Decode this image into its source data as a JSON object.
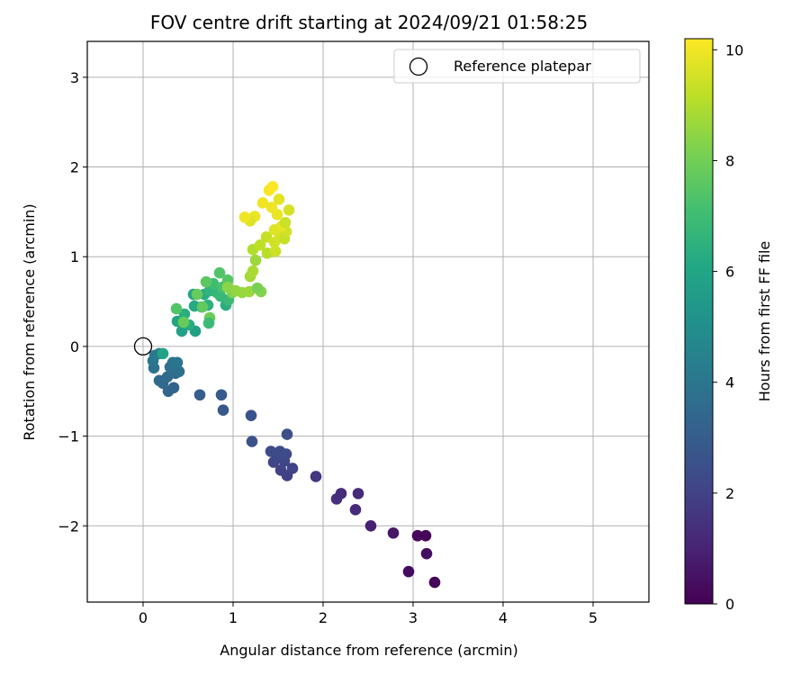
{
  "chart_data": {
    "type": "scatter",
    "title": "FOV centre drift starting at 2024/09/21 01:58:25",
    "xlabel": "Angular distance from reference (arcmin)",
    "ylabel": "Rotation from reference (arcmin)",
    "xlim": [
      -0.62,
      5.62
    ],
    "ylim": [
      -2.85,
      3.4
    ],
    "xticks": [
      0,
      1,
      2,
      3,
      4,
      5
    ],
    "yticks": [
      -2,
      -1,
      0,
      1,
      2,
      3
    ],
    "grid": true,
    "legend": {
      "placement": "upper right",
      "entries": [
        "Reference platepar"
      ]
    },
    "reference_point": {
      "name": "Reference platepar",
      "x": 0,
      "y": 0,
      "marker": "open-circle"
    },
    "colorbar": {
      "label": "Hours from first FF file",
      "colormap": "viridis",
      "range": [
        0,
        10.2
      ],
      "ticks": [
        0,
        2,
        4,
        6,
        8,
        10
      ]
    },
    "points": [
      [
        3.24,
        -2.63,
        0.1
      ],
      [
        2.95,
        -2.51,
        0.3
      ],
      [
        3.15,
        -2.31,
        0.35
      ],
      [
        3.05,
        -2.11,
        0.2
      ],
      [
        3.14,
        -2.11,
        0.15
      ],
      [
        2.78,
        -2.08,
        0.6
      ],
      [
        2.53,
        -2.0,
        0.9
      ],
      [
        2.36,
        -1.82,
        1.2
      ],
      [
        2.15,
        -1.7,
        1.4
      ],
      [
        2.2,
        -1.64,
        1.3
      ],
      [
        2.39,
        -1.64,
        1.25
      ],
      [
        1.92,
        -1.45,
        1.6
      ],
      [
        1.6,
        -1.44,
        1.9
      ],
      [
        1.53,
        -1.38,
        2.0
      ],
      [
        1.66,
        -1.36,
        2.05
      ],
      [
        1.45,
        -1.29,
        2.1
      ],
      [
        1.57,
        -1.28,
        2.15
      ],
      [
        1.5,
        -1.22,
        2.2
      ],
      [
        1.59,
        -1.2,
        2.25
      ],
      [
        1.42,
        -1.17,
        2.3
      ],
      [
        1.52,
        -1.17,
        2.35
      ],
      [
        1.6,
        -0.98,
        2.4
      ],
      [
        1.21,
        -1.06,
        2.5
      ],
      [
        1.2,
        -0.77,
        2.6
      ],
      [
        0.89,
        -0.71,
        2.8
      ],
      [
        0.87,
        -0.54,
        2.9
      ],
      [
        0.63,
        -0.54,
        3.0
      ],
      [
        0.34,
        -0.46,
        3.2
      ],
      [
        0.28,
        -0.5,
        3.3
      ],
      [
        0.22,
        -0.41,
        3.4
      ],
      [
        0.18,
        -0.38,
        3.5
      ],
      [
        0.27,
        -0.34,
        3.55
      ],
      [
        0.36,
        -0.3,
        3.6
      ],
      [
        0.4,
        -0.28,
        3.7
      ],
      [
        0.3,
        -0.23,
        3.75
      ],
      [
        0.12,
        -0.24,
        3.8
      ],
      [
        0.33,
        -0.18,
        3.9
      ],
      [
        0.38,
        -0.18,
        3.95
      ],
      [
        0.11,
        -0.16,
        4.0
      ],
      [
        0.13,
        -0.1,
        4.1
      ],
      [
        0.18,
        -0.08,
        4.2
      ],
      [
        0.22,
        -0.08,
        5.9
      ],
      [
        0.43,
        0.17,
        5.8
      ],
      [
        0.58,
        0.17,
        5.7
      ],
      [
        0.38,
        0.28,
        6.0
      ],
      [
        0.51,
        0.24,
        6.3
      ],
      [
        0.46,
        0.36,
        6.4
      ],
      [
        0.57,
        0.45,
        6.2
      ],
      [
        0.65,
        0.44,
        6.1
      ],
      [
        0.72,
        0.46,
        6.5
      ],
      [
        0.68,
        0.58,
        6.3
      ],
      [
        0.56,
        0.58,
        6.0
      ],
      [
        0.74,
        0.62,
        6.6
      ],
      [
        0.82,
        0.6,
        6.7
      ],
      [
        0.92,
        0.46,
        6.4
      ],
      [
        0.95,
        0.52,
        6.9
      ],
      [
        0.86,
        0.56,
        6.8
      ],
      [
        0.78,
        0.7,
        7.0
      ],
      [
        0.88,
        0.66,
        7.2
      ],
      [
        0.85,
        0.82,
        7.4
      ],
      [
        0.94,
        0.74,
        7.5
      ],
      [
        0.7,
        0.72,
        7.6
      ],
      [
        0.6,
        0.58,
        7.8
      ],
      [
        0.66,
        0.44,
        7.7
      ],
      [
        0.74,
        0.32,
        7.9
      ],
      [
        0.73,
        0.26,
        6.9
      ],
      [
        0.37,
        0.42,
        7.4
      ],
      [
        0.45,
        0.27,
        7.8
      ],
      [
        0.99,
        0.6,
        8.2
      ],
      [
        0.94,
        0.66,
        8.4
      ],
      [
        1.03,
        0.62,
        8.5
      ],
      [
        1.1,
        0.6,
        8.6
      ],
      [
        1.18,
        0.61,
        8.7
      ],
      [
        1.31,
        0.61,
        8.3
      ],
      [
        1.27,
        0.65,
        8.1
      ],
      [
        1.19,
        0.78,
        8.8
      ],
      [
        1.22,
        0.84,
        8.9
      ],
      [
        1.25,
        0.96,
        8.7
      ],
      [
        1.22,
        1.08,
        9.0
      ],
      [
        1.3,
        1.13,
        9.2
      ],
      [
        1.38,
        1.04,
        9.1
      ],
      [
        1.37,
        1.22,
        9.3
      ],
      [
        1.47,
        1.06,
        9.4
      ],
      [
        1.46,
        1.16,
        9.5
      ],
      [
        1.52,
        1.22,
        9.6
      ],
      [
        1.57,
        1.2,
        9.3
      ],
      [
        1.59,
        1.28,
        9.5
      ],
      [
        1.46,
        1.3,
        9.7
      ],
      [
        1.54,
        1.34,
        9.8
      ],
      [
        1.58,
        1.38,
        9.4
      ],
      [
        1.62,
        1.52,
        9.6
      ],
      [
        1.49,
        1.47,
        9.9
      ],
      [
        1.43,
        1.55,
        10.0
      ],
      [
        1.51,
        1.64,
        9.8
      ],
      [
        1.4,
        1.74,
        10.1
      ],
      [
        1.44,
        1.78,
        10.2
      ],
      [
        1.33,
        1.6,
        10.0
      ],
      [
        1.24,
        1.45,
        9.9
      ],
      [
        1.19,
        1.4,
        9.7
      ],
      [
        1.13,
        1.44,
        10.0
      ]
    ]
  }
}
